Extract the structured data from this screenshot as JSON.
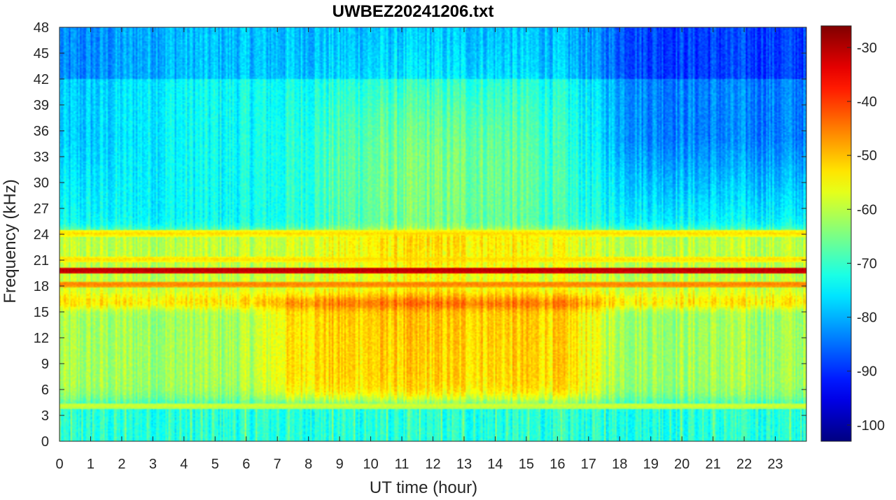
{
  "chart_data": {
    "type": "heatmap",
    "title": "UWBEZ20241206.txt",
    "xlabel": "UT time (hour)",
    "ylabel": "Frequency (kHz)",
    "xlim": [
      0,
      24
    ],
    "ylim": [
      0,
      48
    ],
    "x_ticks": [
      0,
      1,
      2,
      3,
      4,
      5,
      6,
      7,
      8,
      9,
      10,
      11,
      12,
      13,
      14,
      15,
      16,
      17,
      18,
      19,
      20,
      21,
      22,
      23
    ],
    "y_ticks": [
      0,
      3,
      6,
      9,
      12,
      15,
      18,
      21,
      24,
      27,
      30,
      33,
      36,
      39,
      42,
      45,
      48
    ],
    "colorbar": {
      "colormap": "jet",
      "clim": [
        -103,
        -26
      ],
      "ticks": [
        -100,
        -90,
        -80,
        -70,
        -60,
        -50,
        -40,
        -30
      ]
    },
    "colors": {
      "jet_stops": [
        "#00008f",
        "#0000ff",
        "#00ffff",
        "#ffff00",
        "#ff0000",
        "#800000"
      ]
    },
    "features": [
      {
        "kind": "narrowband_line",
        "freq_khz": 19.8,
        "level_db": -30
      },
      {
        "kind": "narrowband_line",
        "freq_khz": 18.2,
        "level_db": -45
      },
      {
        "kind": "narrowband_line",
        "freq_khz": 21.1,
        "level_db": -52
      },
      {
        "kind": "narrowband_line",
        "freq_khz": 24.1,
        "level_db": -52
      },
      {
        "kind": "narrowband_line",
        "freq_khz": 4.1,
        "level_db": -58
      },
      {
        "kind": "broadband_noise",
        "freq_khz": [
          5,
          16
        ],
        "hours": [
          7,
          17
        ],
        "level_db": -45
      },
      {
        "kind": "background_high_freq",
        "freq_khz": [
          25,
          48
        ],
        "level_db": -75
      }
    ]
  }
}
